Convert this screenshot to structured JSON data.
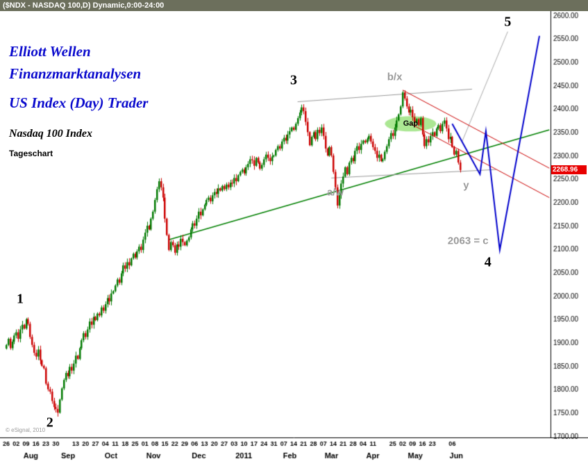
{
  "window": {
    "title": "($NDX - NASDAQ 100,D) Dynamic,0:00-24:00"
  },
  "annotations": {
    "line1": "Elliott Wellen",
    "line2": "Finanzmarktanalysen",
    "line3": "US Index (Day) Trader",
    "line4": "Nasdaq 100 Index",
    "line5": "Tageschart"
  },
  "copyright": "© eSignal, 2010",
  "chart_data": {
    "type": "candlestick",
    "ylim": [
      1700,
      2600
    ],
    "y_step": 50,
    "last_price": 2268.96,
    "last_price_label": "2268.96",
    "colors": {
      "up": "#007a00",
      "down": "#cc0000",
      "last_price_bg": "#e80000",
      "axis_text": "#000000"
    },
    "closes": [
      1895,
      1908,
      1888,
      1902,
      1915,
      1922,
      1908,
      1928,
      1938,
      1930,
      1950,
      1940,
      1912,
      1895,
      1878,
      1870,
      1885,
      1862,
      1850,
      1845,
      1812,
      1800,
      1795,
      1775,
      1762,
      1758,
      1750,
      1778,
      1802,
      1820,
      1835,
      1828,
      1848,
      1840,
      1855,
      1872,
      1865,
      1888,
      1905,
      1920,
      1912,
      1928,
      1945,
      1938,
      1955,
      1948,
      1962,
      1958,
      1975,
      1968,
      1982,
      1995,
      1988,
      2005,
      2010,
      2022,
      2035,
      2028,
      2048,
      2065,
      2058,
      2072,
      2065,
      2080,
      2090,
      2082,
      2095,
      2105,
      2098,
      2120,
      2135,
      2150,
      2142,
      2165,
      2180,
      2205,
      2228,
      2245,
      2232,
      2210,
      2165,
      2130,
      2098,
      2115,
      2108,
      2092,
      2110,
      2105,
      2122,
      2115,
      2108,
      2118,
      2125,
      2142,
      2155,
      2150,
      2165,
      2180,
      2172,
      2185,
      2195,
      2205,
      2210,
      2202,
      2215,
      2222,
      2218,
      2230,
      2225,
      2235,
      2228,
      2238,
      2232,
      2242,
      2240,
      2252,
      2245,
      2258,
      2265,
      2270,
      2262,
      2275,
      2282,
      2292,
      2290,
      2278,
      2295,
      2285,
      2272,
      2280,
      2292,
      2302,
      2295,
      2288,
      2298,
      2300,
      2312,
      2320,
      2315,
      2330,
      2338,
      2332,
      2345,
      2352,
      2360,
      2355,
      2368,
      2380,
      2392,
      2403,
      2395,
      2372,
      2350,
      2322,
      2340,
      2350,
      2335,
      2355,
      2348,
      2360,
      2342,
      2315,
      2300,
      2318,
      2300,
      2265,
      2232,
      2193,
      2215,
      2240,
      2255,
      2275,
      2260,
      2285,
      2295,
      2288,
      2310,
      2320,
      2312,
      2325,
      2332,
      2328,
      2335,
      2342,
      2330,
      2318,
      2310,
      2295,
      2302,
      2288,
      2292,
      2308,
      2320,
      2335,
      2348,
      2342,
      2360,
      2375,
      2388,
      2405,
      2435,
      2422,
      2405,
      2392,
      2398,
      2382,
      2370,
      2378,
      2365,
      2380,
      2345,
      2320,
      2335,
      2328,
      2342,
      2350,
      2342,
      2358,
      2365,
      2352,
      2368,
      2375,
      2358,
      2335,
      2340,
      2318,
      2302,
      2310,
      2285,
      2268.96
    ],
    "x_ticks": [
      [
        0,
        "26"
      ],
      [
        5,
        "02"
      ],
      [
        10,
        "09"
      ],
      [
        15,
        "16"
      ],
      [
        20,
        "23"
      ],
      [
        25,
        "30"
      ],
      [
        35,
        "13"
      ],
      [
        40,
        "20"
      ],
      [
        45,
        "27"
      ],
      [
        50,
        "04"
      ],
      [
        55,
        "11"
      ],
      [
        60,
        "18"
      ],
      [
        65,
        "25"
      ],
      [
        70,
        "01"
      ],
      [
        75,
        "08"
      ],
      [
        80,
        "15"
      ],
      [
        85,
        "22"
      ],
      [
        90,
        "29"
      ],
      [
        95,
        "06"
      ],
      [
        100,
        "13"
      ],
      [
        105,
        "20"
      ],
      [
        110,
        "27"
      ],
      [
        115,
        "03"
      ],
      [
        120,
        "10"
      ],
      [
        125,
        "17"
      ],
      [
        130,
        "24"
      ],
      [
        135,
        "31"
      ],
      [
        140,
        "07"
      ],
      [
        145,
        "14"
      ],
      [
        150,
        "21"
      ],
      [
        155,
        "28"
      ],
      [
        160,
        "07"
      ],
      [
        165,
        "14"
      ],
      [
        170,
        "21"
      ],
      [
        175,
        "28"
      ],
      [
        180,
        "04"
      ],
      [
        185,
        "11"
      ],
      [
        195,
        "25"
      ],
      [
        200,
        "02"
      ],
      [
        205,
        "09"
      ],
      [
        210,
        "16"
      ],
      [
        215,
        "23"
      ],
      [
        225,
        "06"
      ]
    ],
    "x_months": [
      [
        9,
        "Aug"
      ],
      [
        28,
        "Sep"
      ],
      [
        50,
        "Oct"
      ],
      [
        71,
        "Nov"
      ],
      [
        94,
        "Dec"
      ],
      [
        116,
        "2011"
      ],
      [
        140,
        "Feb"
      ],
      [
        161,
        "Mar"
      ],
      [
        182,
        "Apr"
      ],
      [
        203,
        "May"
      ],
      [
        224,
        "Jun"
      ]
    ],
    "wave_labels": [
      {
        "text": "1",
        "day": 7,
        "price": 1992,
        "color": "#000000",
        "size": 20,
        "serif": true
      },
      {
        "text": "2",
        "day": 22,
        "price": 1728,
        "color": "#000000",
        "size": 20,
        "serif": true
      },
      {
        "text": "3",
        "day": 145,
        "price": 2460,
        "color": "#000000",
        "size": 20,
        "serif": true
      },
      {
        "text": "4",
        "day": 243,
        "price": 2072,
        "color": "#000000",
        "size": 20,
        "serif": true
      },
      {
        "text": "5",
        "day": 253,
        "price": 2585,
        "color": "#000000",
        "size": 20,
        "serif": true
      },
      {
        "text": "b/x",
        "day": 196,
        "price": 2468,
        "color": "#9a9a9a",
        "size": 15,
        "serif": false
      },
      {
        "text": "a/w",
        "day": 166,
        "price": 2222,
        "color": "#9a9a9a",
        "size": 15,
        "serif": false
      },
      {
        "text": "y",
        "day": 232,
        "price": 2236,
        "color": "#9a9a9a",
        "size": 15,
        "serif": false
      },
      {
        "text": "2063 = c",
        "day": 233,
        "price": 2118,
        "color": "#9a9a9a",
        "size": 15,
        "serif": false
      }
    ],
    "gap": {
      "label": "Gap",
      "day": 204,
      "price": 2368
    },
    "trend_lines": [
      {
        "name": "support-trendline-green",
        "color": "#008000",
        "width": 1.5,
        "layer": "back",
        "points": [
          [
            82,
            2120
          ],
          [
            274,
            2355
          ]
        ]
      },
      {
        "name": "top-trendline-gray",
        "color": "#999999",
        "width": 1,
        "layer": "back",
        "points": [
          [
            147,
            2415
          ],
          [
            235,
            2442
          ]
        ]
      },
      {
        "name": "bottom-trendline-gray",
        "color": "#999999",
        "width": 1,
        "layer": "back",
        "points": [
          [
            164,
            2252
          ],
          [
            247,
            2270
          ]
        ]
      },
      {
        "name": "wave5-projection-gray",
        "color": "#aaaaaa",
        "width": 1,
        "layer": "front",
        "points": [
          [
            230,
            2330
          ],
          [
            253,
            2565
          ]
        ]
      },
      {
        "name": "down-channel-upper-red",
        "color": "#cc0000",
        "width": 1,
        "layer": "front",
        "points": [
          [
            200,
            2440
          ],
          [
            274,
            2273
          ]
        ]
      },
      {
        "name": "down-channel-lower-red",
        "color": "#cc0000",
        "width": 1,
        "layer": "front",
        "points": [
          [
            204,
            2368
          ],
          [
            274,
            2210
          ]
        ]
      },
      {
        "name": "wave45-projection-blue",
        "color": "#0000cc",
        "width": 2,
        "layer": "front",
        "points": [
          [
            225,
            2368
          ],
          [
            239,
            2260
          ],
          [
            242,
            2352
          ],
          [
            249,
            2098
          ],
          [
            269,
            2556
          ]
        ]
      }
    ]
  }
}
